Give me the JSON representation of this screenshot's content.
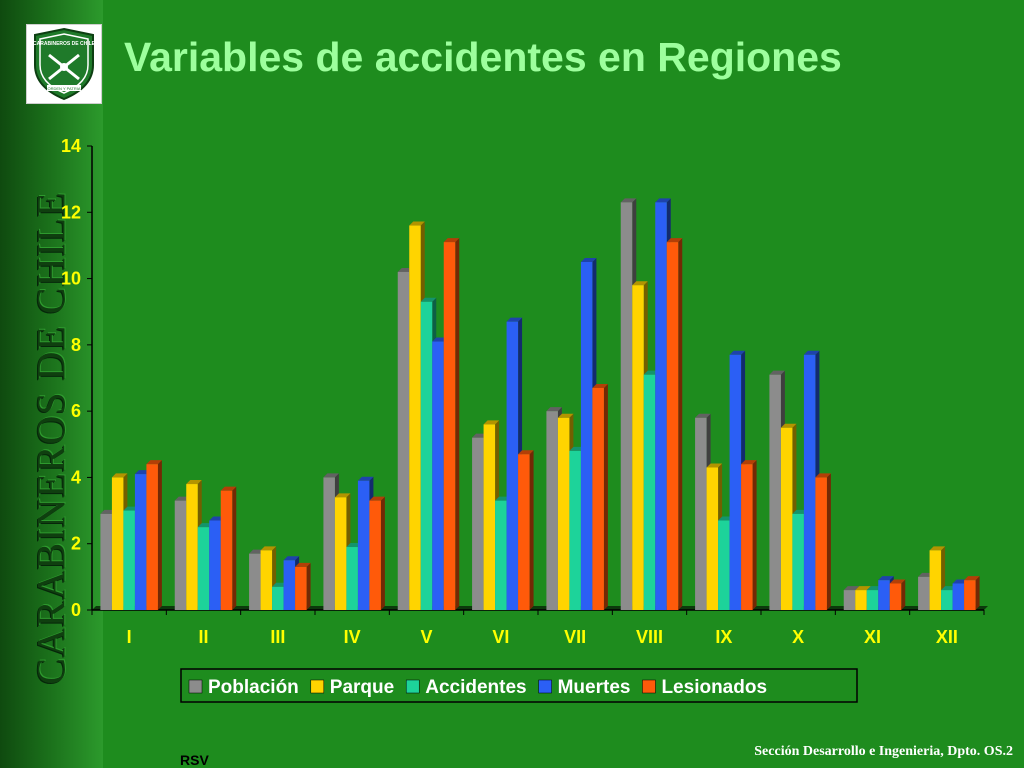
{
  "sidebar": {
    "title": "CARABINEROS DE CHILE",
    "logo": {
      "icon": "carabineros-shield-icon",
      "text_top": "CARABINEROS DE CHILE",
      "text_bottom": "ORDEN Y PATRIA"
    }
  },
  "slide": {
    "title": "Variables de accidentes en Regiones"
  },
  "footer": {
    "left": "RSV",
    "right": "Sección Desarrollo e Ingenieria, Dpto. OS.2"
  },
  "chart_data": {
    "type": "bar",
    "title": "",
    "xlabel": "",
    "ylabel": "",
    "ylim": [
      0,
      14
    ],
    "yticks": [
      0,
      2,
      4,
      6,
      8,
      10,
      12,
      14
    ],
    "grid": false,
    "legend_position": "bottom",
    "categories": [
      "I",
      "II",
      "III",
      "IV",
      "V",
      "VI",
      "VII",
      "VIII",
      "IX",
      "X",
      "XI",
      "XII"
    ],
    "series": [
      {
        "name": "Población",
        "color": "#8c8c8c",
        "values": [
          2.9,
          3.3,
          1.7,
          4.0,
          10.2,
          5.2,
          6.0,
          12.3,
          5.8,
          7.1,
          0.6,
          1.0
        ]
      },
      {
        "name": "Parque",
        "color": "#ffd400",
        "values": [
          4.0,
          3.8,
          1.8,
          3.4,
          11.6,
          5.6,
          5.8,
          9.8,
          4.3,
          5.5,
          0.6,
          1.8
        ]
      },
      {
        "name": "Accidentes",
        "color": "#1dd39a",
        "values": [
          3.0,
          2.5,
          0.7,
          1.9,
          9.3,
          3.3,
          4.8,
          7.1,
          2.7,
          2.9,
          0.6,
          0.6
        ]
      },
      {
        "name": "Muertes",
        "color": "#2b5ff5",
        "values": [
          4.1,
          2.7,
          1.5,
          3.9,
          8.1,
          8.7,
          10.5,
          12.3,
          7.7,
          7.7,
          0.9,
          0.8
        ]
      },
      {
        "name": "Lesionados",
        "color": "#ff5a0a",
        "values": [
          4.4,
          3.6,
          1.3,
          3.3,
          11.1,
          4.7,
          6.7,
          11.1,
          4.4,
          4.0,
          0.8,
          0.9
        ]
      }
    ]
  },
  "colors": {
    "background": "#1e8c1e",
    "title": "#9dff9d",
    "tick_labels": "#ffff00"
  }
}
